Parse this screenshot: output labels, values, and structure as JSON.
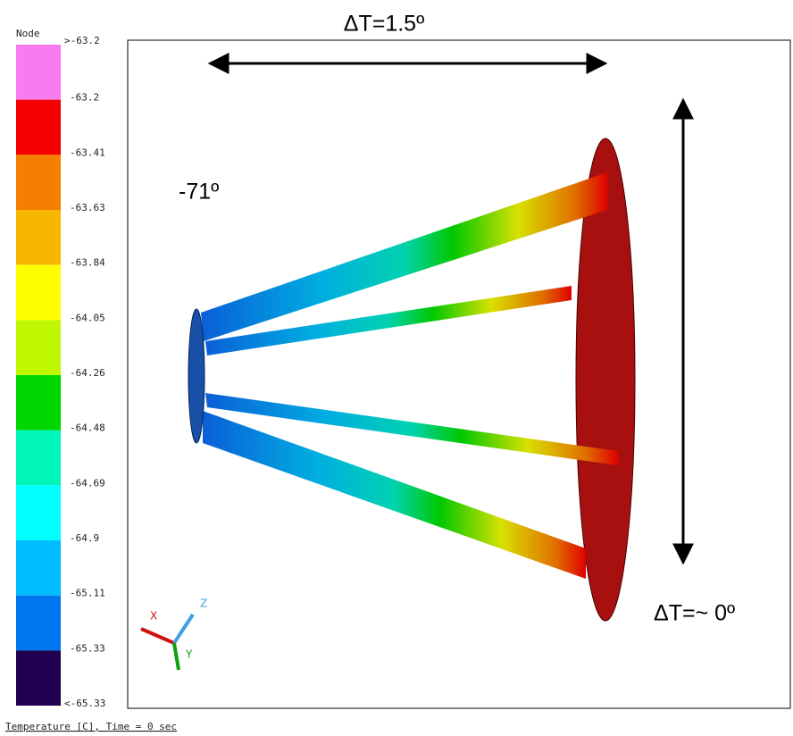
{
  "legend": {
    "title": "Node",
    "labels": [
      ">-63.2",
      "-63.2",
      "-63.41",
      "-63.63",
      "-63.84",
      "-64.05",
      "-64.26",
      "-64.48",
      "-64.69",
      "-64.9",
      "-65.11",
      "-65.33",
      "<-65.33"
    ],
    "colors": [
      "#f77cf0",
      "#f40000",
      "#f57f00",
      "#f7b700",
      "#ffff00",
      "#bff700",
      "#00d600",
      "#00f5b8",
      "#00ffff",
      "#00bcff",
      "#0077f0",
      "#200050"
    ]
  },
  "annotations": {
    "top": "ΔT=1.5º",
    "left": "-71º",
    "right": "ΔT=~ 0º"
  },
  "triad": {
    "x": "X",
    "y": "Y",
    "z": "Z"
  },
  "footer": "Temperature [C], Time = 0 sec"
}
